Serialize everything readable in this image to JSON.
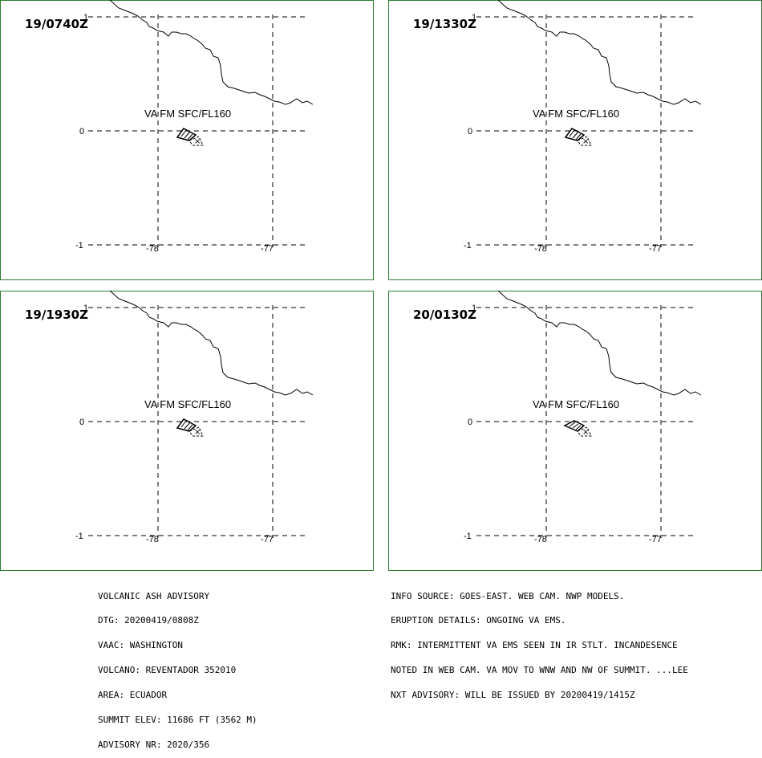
{
  "panels": [
    {
      "time": "19/0740Z",
      "va_label": "VA FM SFC/FL160",
      "variant": "a"
    },
    {
      "time": "19/1330Z",
      "va_label": "VA FM SFC/FL160",
      "variant": "a"
    },
    {
      "time": "19/1930Z",
      "va_label": "VA FM SFC/FL160",
      "variant": "a"
    },
    {
      "time": "20/0130Z",
      "va_label": "VA FM SFC/FL160",
      "variant": "b"
    }
  ],
  "axes": {
    "lat_labels": [
      "1",
      "0",
      "-1"
    ],
    "lon_labels": [
      "-78",
      "-77"
    ]
  },
  "colors": {
    "frame": "#2e7d32",
    "ink": "#000000"
  },
  "advisory_left": [
    "VOLCANIC ASH ADVISORY",
    "DTG: 20200419/0808Z",
    "VAAC: WASHINGTON",
    "VOLCANO: REVENTADOR 352010",
    "AREA: ECUADOR",
    "SUMMIT ELEV: 11686 FT (3562 M)",
    "ADVISORY NR: 2020/356"
  ],
  "advisory_right": [
    "INFO SOURCE: GOES-EAST. WEB CAM. NWP MODELS.",
    "ERUPTION DETAILS: ONGOING VA EMS.",
    "RMK: INTERMITTENT VA EMS SEEN IN IR STLT. INCANDESENCE",
    "NOTED IN WEB CAM. VA MOV TO WNW AND NW OF SUMMIT. ...LEE",
    "NXT ADVISORY: WILL BE ISSUED BY 20200419/1415Z"
  ]
}
